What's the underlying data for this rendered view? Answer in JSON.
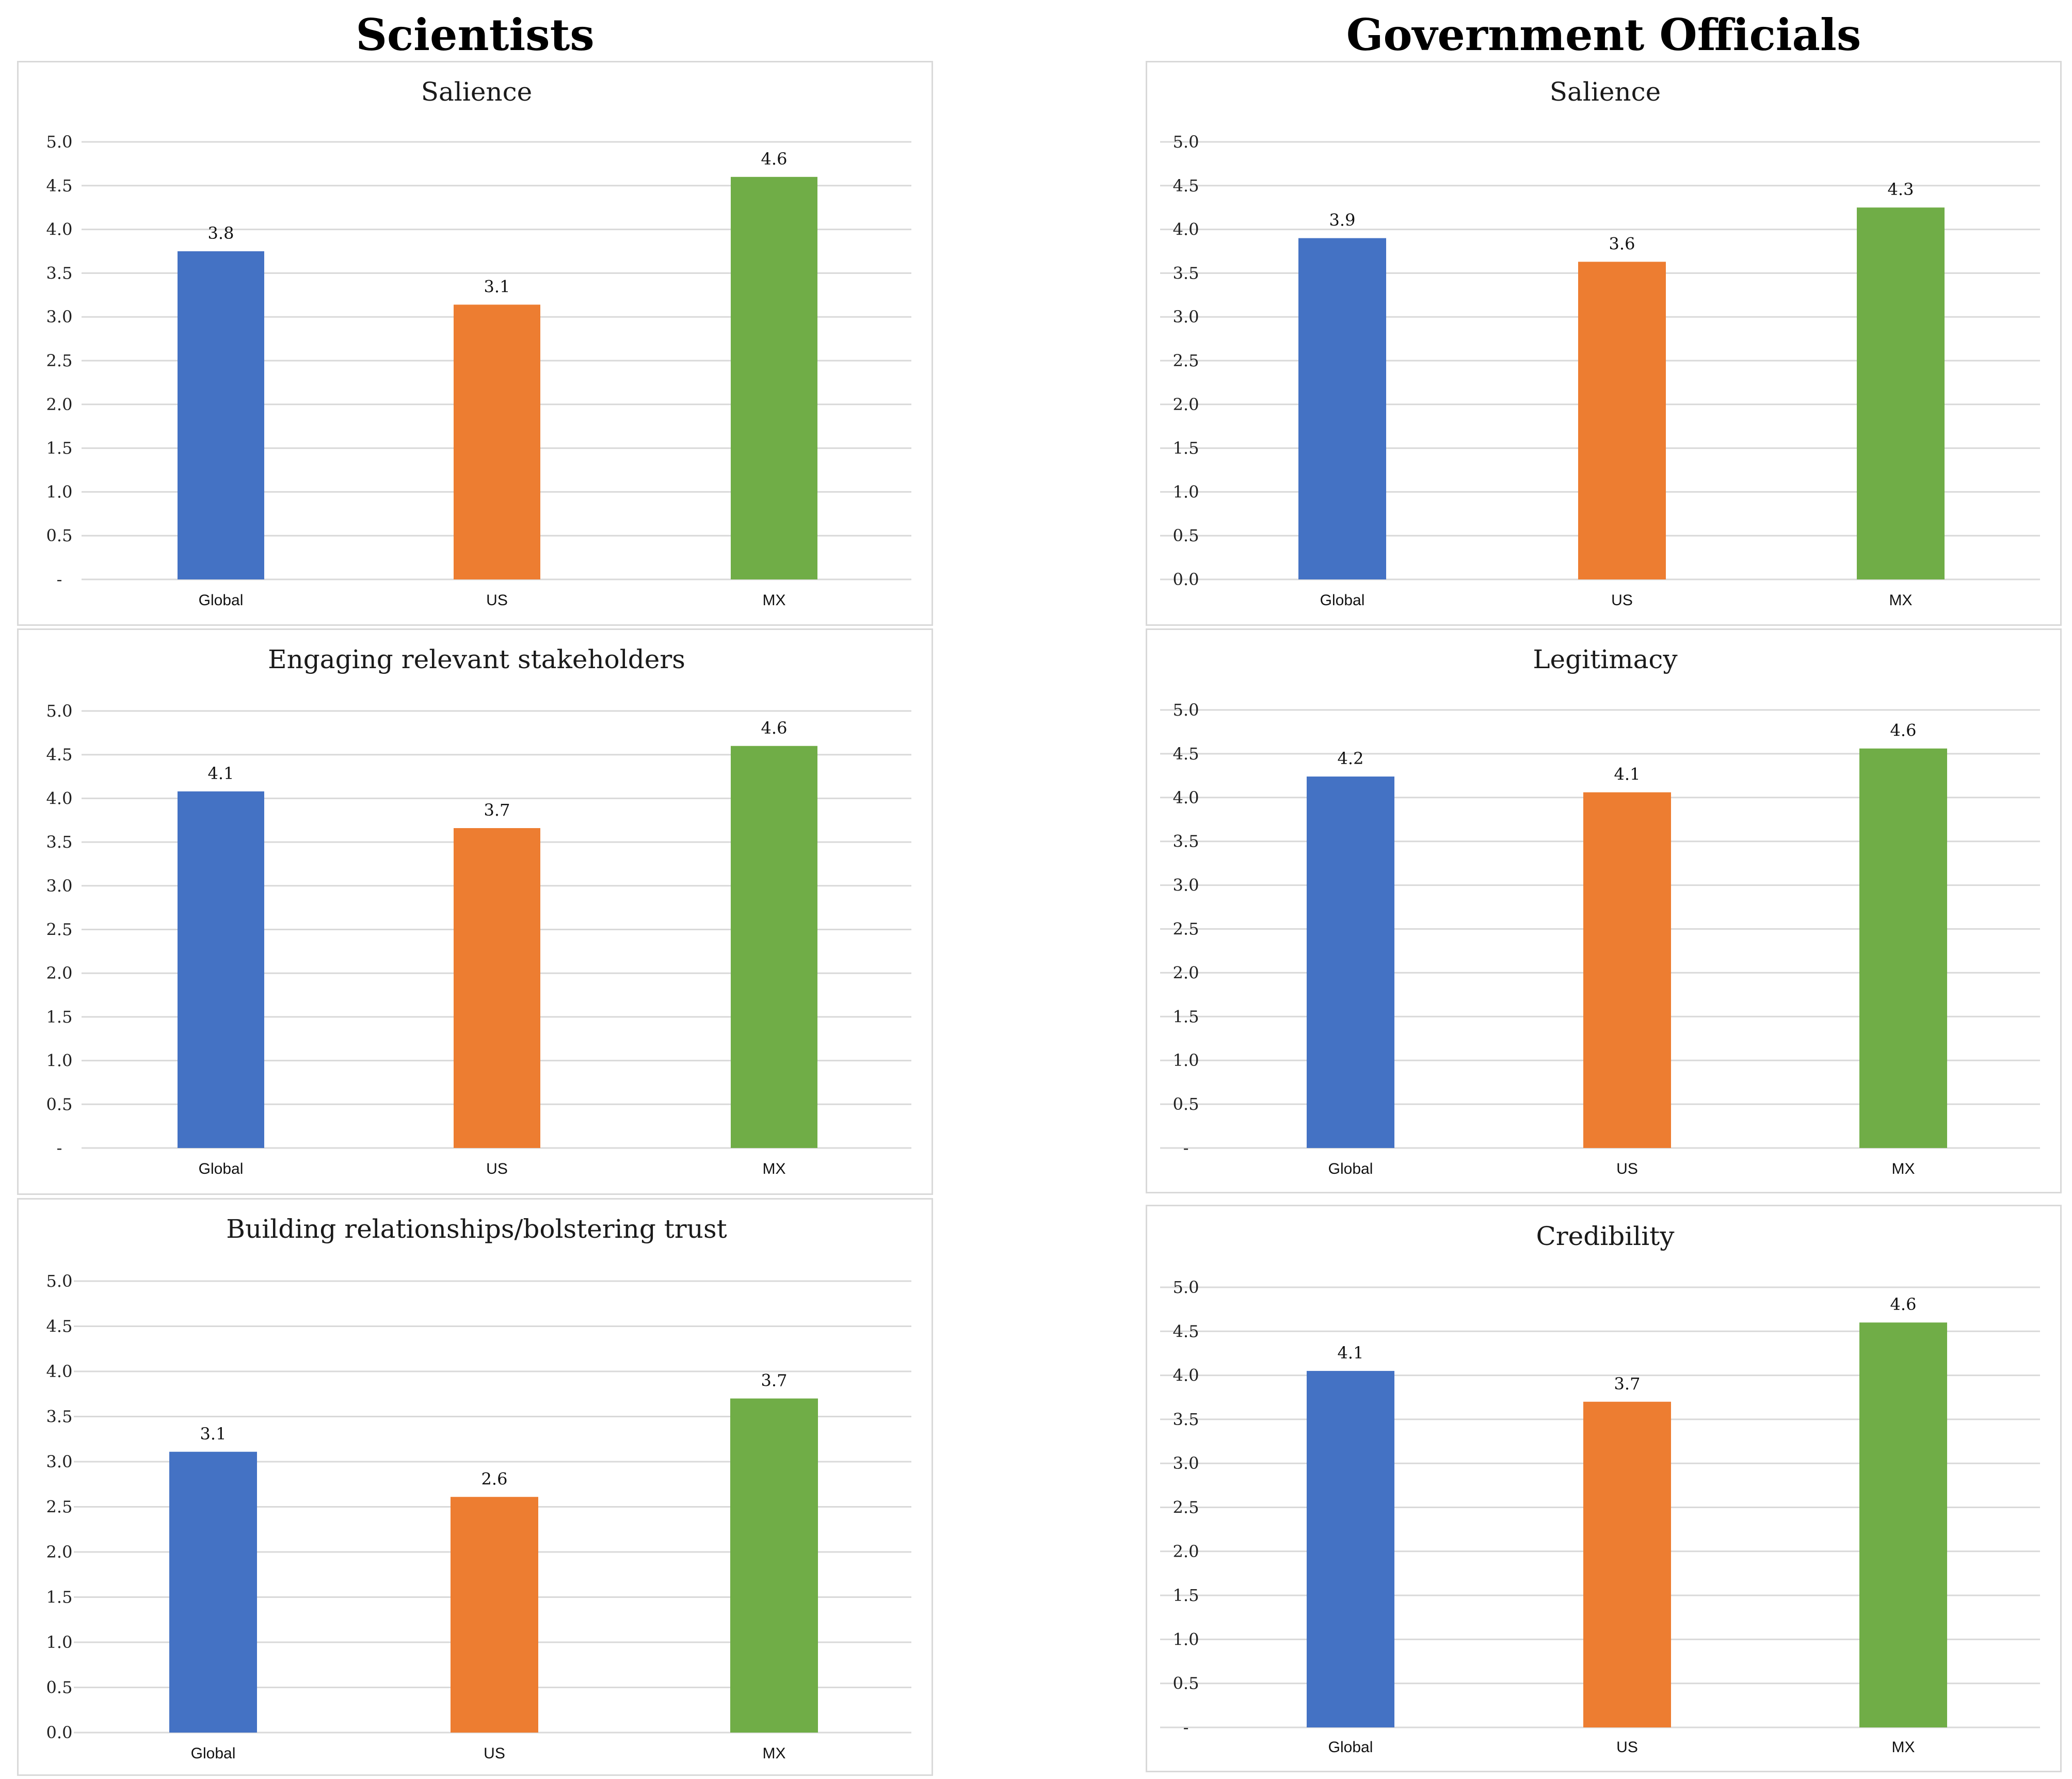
{
  "columns": [
    {
      "title": "Scientists"
    },
    {
      "title": "Government Officials"
    }
  ],
  "colors": {
    "Global": "#4472C4",
    "US": "#ED7D31",
    "MX": "#70AD47"
  },
  "chart_data": [
    {
      "type": "bar",
      "group": "Scientists",
      "title": "Salience",
      "categories": [
        "Global",
        "US",
        "MX"
      ],
      "values": [
        3.75,
        3.14,
        4.6
      ],
      "labels": [
        "3.8",
        "3.1",
        "4.6"
      ],
      "yticks": [
        "-",
        "0.5",
        "1.0",
        "1.5",
        "2.0",
        "2.5",
        "3.0",
        "3.5",
        "4.0",
        "4.5",
        "5.0"
      ],
      "ylim": [
        0,
        5
      ],
      "xlabel": "",
      "ylabel": "",
      "grid": true
    },
    {
      "type": "bar",
      "group": "Government Officials",
      "title": "Salience",
      "categories": [
        "Global",
        "US",
        "MX"
      ],
      "values": [
        3.9,
        3.63,
        4.25
      ],
      "labels": [
        "3.9",
        "3.6",
        "4.3"
      ],
      "yticks": [
        "0.0",
        "0.5",
        "1.0",
        "1.5",
        "2.0",
        "2.5",
        "3.0",
        "3.5",
        "4.0",
        "4.5",
        "5.0"
      ],
      "ylim": [
        0,
        5
      ],
      "xlabel": "",
      "ylabel": "",
      "grid": true
    },
    {
      "type": "bar",
      "group": "Scientists",
      "title": "Engaging relevant stakeholders",
      "categories": [
        "Global",
        "US",
        "MX"
      ],
      "values": [
        4.08,
        3.66,
        4.6
      ],
      "labels": [
        "4.1",
        "3.7",
        "4.6"
      ],
      "yticks": [
        "-",
        "0.5",
        "1.0",
        "1.5",
        "2.0",
        "2.5",
        "3.0",
        "3.5",
        "4.0",
        "4.5",
        "5.0"
      ],
      "ylim": [
        0,
        5
      ],
      "xlabel": "",
      "ylabel": "",
      "grid": true
    },
    {
      "type": "bar",
      "group": "Government Officials",
      "title": "Legitimacy",
      "categories": [
        "Global",
        "US",
        "MX"
      ],
      "values": [
        4.24,
        4.06,
        4.56
      ],
      "labels": [
        "4.2",
        "4.1",
        "4.6"
      ],
      "yticks": [
        "-",
        "0.5",
        "1.0",
        "1.5",
        "2.0",
        "2.5",
        "3.0",
        "3.5",
        "4.0",
        "4.5",
        "5.0"
      ],
      "ylim": [
        0,
        5
      ],
      "xlabel": "",
      "ylabel": "",
      "grid": true
    },
    {
      "type": "bar",
      "group": "Scientists",
      "title": "Building relationships/bolstering trust",
      "categories": [
        "Global",
        "US",
        "MX"
      ],
      "values": [
        3.11,
        2.61,
        3.7
      ],
      "labels": [
        "3.1",
        "2.6",
        "3.7"
      ],
      "yticks": [
        "0.0",
        "0.5",
        "1.0",
        "1.5",
        "2.0",
        "2.5",
        "3.0",
        "3.5",
        "4.0",
        "4.5",
        "5.0"
      ],
      "ylim": [
        0,
        5
      ],
      "xlabel": "",
      "ylabel": "",
      "grid": true
    },
    {
      "type": "bar",
      "group": "Government Officials",
      "title": "Credibility",
      "categories": [
        "Global",
        "US",
        "MX"
      ],
      "values": [
        4.05,
        3.7,
        4.6
      ],
      "labels": [
        "4.1",
        "3.7",
        "4.6"
      ],
      "yticks": [
        "-",
        "0.5",
        "1.0",
        "1.5",
        "2.0",
        "2.5",
        "3.0",
        "3.5",
        "4.0",
        "4.5",
        "5.0"
      ],
      "ylim": [
        0,
        5
      ],
      "xlabel": "",
      "ylabel": "",
      "grid": true
    }
  ]
}
